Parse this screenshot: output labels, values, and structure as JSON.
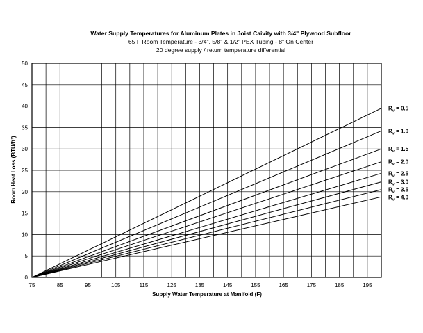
{
  "chart_data": {
    "type": "line",
    "title": "Water Supply Temperatures for Aluminum Plates in Joist Caivity with 3/4\" Plywood Subfloor",
    "subtitle_lines": [
      "65 F Room Temperature - 3/4\", 5/8\" & 1/2\" PEX Tubing - 8\" On Center",
      "20 degree supply / return temperature differential"
    ],
    "xlabel": "Supply Water Temperature at Manifold (F)",
    "ylabel": "Room Heat Loss (BTU/ft²)",
    "xlim": [
      75,
      200
    ],
    "ylim": [
      0,
      50
    ],
    "x_ticks": [
      75,
      85,
      95,
      105,
      115,
      125,
      135,
      145,
      155,
      165,
      175,
      185,
      195
    ],
    "x_tick_labels": [
      "75",
      "85",
      "95",
      "105",
      "115",
      "125",
      "135",
      "145",
      "155",
      "165",
      "175",
      "185",
      "195"
    ],
    "y_ticks": [
      0,
      5,
      10,
      15,
      20,
      25,
      30,
      35,
      40,
      45,
      50
    ],
    "y_tick_labels": [
      "0",
      "5",
      "10",
      "15",
      "20",
      "25",
      "30",
      "35",
      "40",
      "45",
      "50"
    ],
    "grid": true,
    "legend": "labels at right end of lines",
    "series": [
      {
        "name_main": "R",
        "name_sub": "v",
        "name_rest": " = 0.5",
        "x": [
          75,
          200
        ],
        "y": [
          0,
          39.5
        ]
      },
      {
        "name_main": "R",
        "name_sub": "v",
        "name_rest": " = 1.0",
        "x": [
          75,
          200
        ],
        "y": [
          0,
          34.2
        ]
      },
      {
        "name_main": "R",
        "name_sub": "v",
        "name_rest": " = 1.5",
        "x": [
          75,
          200
        ],
        "y": [
          0,
          30.0
        ]
      },
      {
        "name_main": "R",
        "name_sub": "v",
        "name_rest": " = 2.0",
        "x": [
          75,
          200
        ],
        "y": [
          0,
          27.0
        ]
      },
      {
        "name_main": "R",
        "name_sub": "v",
        "name_rest": " = 2.5",
        "x": [
          75,
          200
        ],
        "y": [
          0,
          24.3
        ]
      },
      {
        "name_main": "R",
        "name_sub": "v",
        "name_rest": " = 3.0",
        "x": [
          75,
          200
        ],
        "y": [
          0,
          22.3
        ]
      },
      {
        "name_main": "R",
        "name_sub": "v",
        "name_rest": " = 3.5",
        "x": [
          75,
          200
        ],
        "y": [
          0,
          20.5
        ]
      },
      {
        "name_main": "R",
        "name_sub": "v",
        "name_rest": " = 4.0",
        "x": [
          75,
          200
        ],
        "y": [
          0,
          18.8
        ]
      }
    ],
    "line_color": "#000000",
    "grid_color": "#000000"
  }
}
